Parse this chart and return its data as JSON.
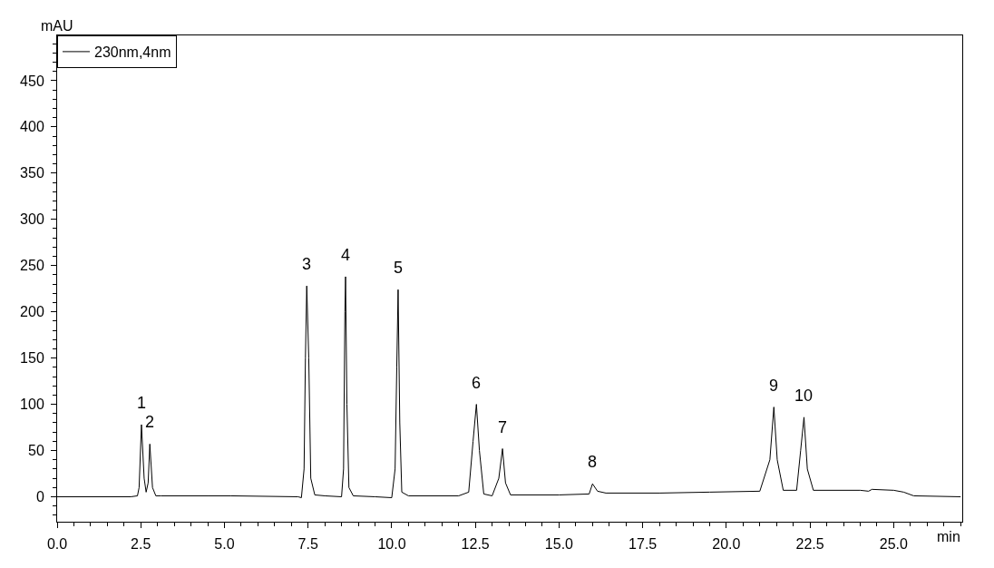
{
  "chart_data": {
    "type": "line",
    "xlabel": "min",
    "ylabel": "mAU",
    "legend": "top left",
    "marker": "none",
    "line_style": "solid",
    "xlim": [
      0,
      27.05
    ],
    "ylim": [
      -27,
      499
    ],
    "xticks": [
      {
        "value": 0,
        "label": "0.0"
      },
      {
        "value": 2.5,
        "label": "2.5"
      },
      {
        "value": 5,
        "label": "5.0"
      },
      {
        "value": 7.5,
        "label": "7.5"
      },
      {
        "value": 10,
        "label": "10.0"
      },
      {
        "value": 12.5,
        "label": "12.5"
      },
      {
        "value": 15,
        "label": "15.0"
      },
      {
        "value": 17.5,
        "label": "17.5"
      },
      {
        "value": 20,
        "label": "20.0"
      },
      {
        "value": 22.5,
        "label": "22.5"
      },
      {
        "value": 25,
        "label": "25.0"
      }
    ],
    "yticks": [
      0,
      50,
      100,
      150,
      200,
      250,
      300,
      350,
      400,
      450
    ],
    "series": [
      {
        "name": "230nm,4nm",
        "color": "#000000",
        "x": [
          0,
          2.2,
          2.4,
          2.45,
          2.52,
          2.6,
          2.66,
          2.72,
          2.77,
          2.85,
          2.95,
          3.1,
          4.5,
          5.2,
          7.2,
          7.3,
          7.38,
          7.42,
          7.46,
          7.52,
          7.58,
          7.7,
          8.0,
          8.5,
          8.56,
          8.6,
          8.62,
          8.66,
          8.72,
          8.85,
          9.5,
          10.0,
          10.1,
          10.15,
          10.19,
          10.24,
          10.3,
          10.5,
          12.0,
          12.3,
          12.43,
          12.53,
          12.62,
          12.75,
          13.0,
          13.2,
          13.31,
          13.4,
          13.55,
          15.0,
          15.9,
          16.0,
          16.15,
          16.4,
          18.0,
          19.5,
          21.0,
          21.3,
          21.42,
          21.52,
          21.7,
          22.1,
          22.22,
          22.32,
          22.42,
          22.6,
          24.0,
          24.25,
          24.35,
          25.0,
          25.3,
          25.6,
          27.0
        ],
        "values": [
          0,
          0,
          1,
          10,
          78,
          20,
          5,
          15,
          57,
          10,
          1,
          1,
          1,
          1,
          0,
          -1,
          30,
          150,
          228,
          150,
          20,
          2,
          1,
          0,
          30,
          200,
          238,
          100,
          10,
          1,
          0,
          -1,
          30,
          140,
          224,
          80,
          5,
          1,
          1,
          5,
          60,
          100,
          50,
          3,
          1,
          20,
          52,
          15,
          2,
          2,
          3,
          14,
          6,
          4,
          4,
          5,
          6,
          40,
          97,
          40,
          7,
          7,
          50,
          86,
          30,
          7,
          7,
          6,
          8,
          7,
          5,
          1,
          0
        ]
      }
    ],
    "annotations": [
      {
        "text": "1",
        "x": 2.52,
        "y": 78
      },
      {
        "text": "2",
        "x": 2.77,
        "y": 57
      },
      {
        "text": "3",
        "x": 7.46,
        "y": 228
      },
      {
        "text": "4",
        "x": 8.62,
        "y": 238
      },
      {
        "text": "5",
        "x": 10.19,
        "y": 224
      },
      {
        "text": "6",
        "x": 12.53,
        "y": 100
      },
      {
        "text": "7",
        "x": 13.31,
        "y": 52
      },
      {
        "text": "8",
        "x": 16.0,
        "y": 14
      },
      {
        "text": "9",
        "x": 21.42,
        "y": 97
      },
      {
        "text": "10",
        "x": 22.32,
        "y": 86
      }
    ]
  }
}
